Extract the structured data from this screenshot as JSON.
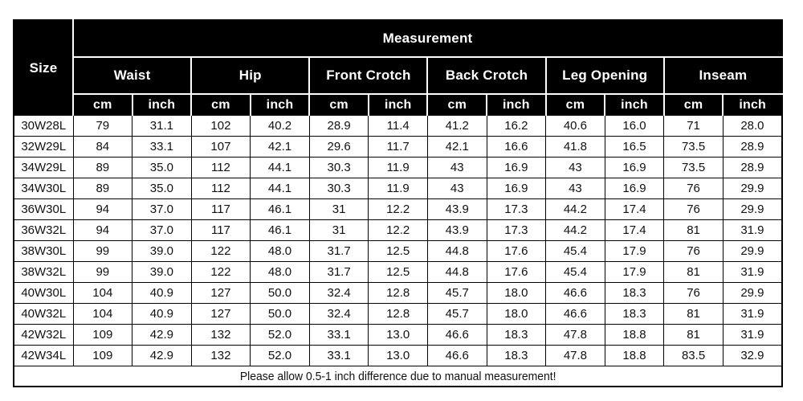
{
  "colors": {
    "header_bg": "#000000",
    "header_text": "#ffffff",
    "grid_line": "#000000",
    "cell_bg": "#ffffff",
    "cell_text": "#111111"
  },
  "chart_data": {
    "type": "table",
    "title": "Measurement",
    "header": {
      "size_label": "Size",
      "measurement_label": "Measurement",
      "groups": [
        "Waist",
        "Hip",
        "Front Crotch",
        "Back Crotch",
        "Leg Opening",
        "Inseam"
      ],
      "unit_labels": [
        "cm",
        "inch"
      ]
    },
    "rows": [
      {
        "size": "30W28L",
        "values": [
          "79",
          "31.1",
          "102",
          "40.2",
          "28.9",
          "11.4",
          "41.2",
          "16.2",
          "40.6",
          "16.0",
          "71",
          "28.0"
        ]
      },
      {
        "size": "32W29L",
        "values": [
          "84",
          "33.1",
          "107",
          "42.1",
          "29.6",
          "11.7",
          "42.1",
          "16.6",
          "41.8",
          "16.5",
          "73.5",
          "28.9"
        ]
      },
      {
        "size": "34W29L",
        "values": [
          "89",
          "35.0",
          "112",
          "44.1",
          "30.3",
          "11.9",
          "43",
          "16.9",
          "43",
          "16.9",
          "73.5",
          "28.9"
        ]
      },
      {
        "size": "34W30L",
        "values": [
          "89",
          "35.0",
          "112",
          "44.1",
          "30.3",
          "11.9",
          "43",
          "16.9",
          "43",
          "16.9",
          "76",
          "29.9"
        ]
      },
      {
        "size": "36W30L",
        "values": [
          "94",
          "37.0",
          "117",
          "46.1",
          "31",
          "12.2",
          "43.9",
          "17.3",
          "44.2",
          "17.4",
          "76",
          "29.9"
        ]
      },
      {
        "size": "36W32L",
        "values": [
          "94",
          "37.0",
          "117",
          "46.1",
          "31",
          "12.2",
          "43.9",
          "17.3",
          "44.2",
          "17.4",
          "81",
          "31.9"
        ]
      },
      {
        "size": "38W30L",
        "values": [
          "99",
          "39.0",
          "122",
          "48.0",
          "31.7",
          "12.5",
          "44.8",
          "17.6",
          "45.4",
          "17.9",
          "76",
          "29.9"
        ]
      },
      {
        "size": "38W32L",
        "values": [
          "99",
          "39.0",
          "122",
          "48.0",
          "31.7",
          "12.5",
          "44.8",
          "17.6",
          "45.4",
          "17.9",
          "81",
          "31.9"
        ]
      },
      {
        "size": "40W30L",
        "values": [
          "104",
          "40.9",
          "127",
          "50.0",
          "32.4",
          "12.8",
          "45.7",
          "18.0",
          "46.6",
          "18.3",
          "76",
          "29.9"
        ]
      },
      {
        "size": "40W32L",
        "values": [
          "104",
          "40.9",
          "127",
          "50.0",
          "32.4",
          "12.8",
          "45.7",
          "18.0",
          "46.6",
          "18.3",
          "81",
          "31.9"
        ]
      },
      {
        "size": "42W32L",
        "values": [
          "109",
          "42.9",
          "132",
          "52.0",
          "33.1",
          "13.0",
          "46.6",
          "18.3",
          "47.8",
          "18.8",
          "81",
          "31.9"
        ]
      },
      {
        "size": "42W34L",
        "values": [
          "109",
          "42.9",
          "132",
          "52.0",
          "33.1",
          "13.0",
          "46.6",
          "18.3",
          "47.8",
          "18.8",
          "83.5",
          "32.9"
        ]
      }
    ],
    "note": "Please allow 0.5-1 inch difference due to manual measurement!"
  }
}
